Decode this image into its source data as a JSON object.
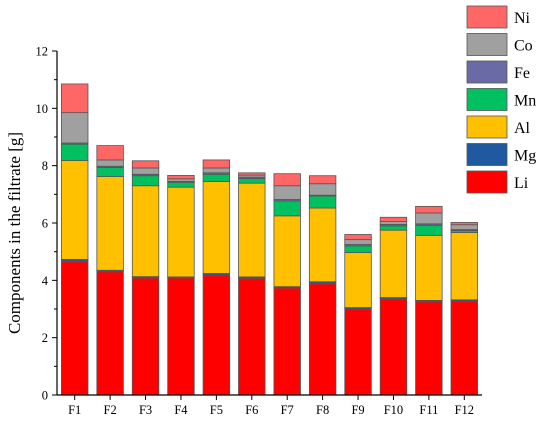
{
  "chart_data": {
    "type": "bar",
    "stacked": true,
    "categories": [
      "F1",
      "F2",
      "F3",
      "F4",
      "F5",
      "F6",
      "F7",
      "F8",
      "F9",
      "F10",
      "F11",
      "F12"
    ],
    "series": [
      {
        "name": "Li",
        "color": "#ff0000",
        "values": [
          4.65,
          4.3,
          4.08,
          4.08,
          4.18,
          4.07,
          3.73,
          3.88,
          3.0,
          3.35,
          3.25,
          3.27
        ]
      },
      {
        "name": "Mg",
        "color": "#1f5aa0",
        "values": [
          0.08,
          0.05,
          0.05,
          0.04,
          0.06,
          0.05,
          0.05,
          0.07,
          0.05,
          0.05,
          0.05,
          0.05
        ]
      },
      {
        "name": "Al",
        "color": "#ffc000",
        "values": [
          3.45,
          3.27,
          3.17,
          3.13,
          3.21,
          3.27,
          2.47,
          2.57,
          1.92,
          2.35,
          2.27,
          2.35
        ]
      },
      {
        "name": "Mn",
        "color": "#00c060",
        "values": [
          0.57,
          0.32,
          0.35,
          0.17,
          0.25,
          0.16,
          0.52,
          0.42,
          0.23,
          0.15,
          0.35,
          0.07
        ]
      },
      {
        "name": "Fe",
        "color": "#6a6aa6",
        "values": [
          0.04,
          0.04,
          0.05,
          0.03,
          0.05,
          0.05,
          0.05,
          0.03,
          0.05,
          0.05,
          0.05,
          0.03
        ]
      },
      {
        "name": "Co",
        "color": "#a0a0a0",
        "values": [
          1.06,
          0.22,
          0.22,
          0.09,
          0.17,
          0.07,
          0.48,
          0.4,
          0.17,
          0.1,
          0.38,
          0.17
        ]
      },
      {
        "name": "Ni",
        "color": "#ff6666",
        "values": [
          1.0,
          0.5,
          0.25,
          0.12,
          0.28,
          0.08,
          0.42,
          0.28,
          0.18,
          0.15,
          0.23,
          0.08
        ]
      }
    ],
    "title": "",
    "xlabel": "",
    "ylabel": "Components in the filtrate [g]",
    "ylim": [
      0,
      12
    ],
    "yticks": [
      0,
      2,
      4,
      6,
      8,
      10,
      12
    ],
    "grid": false,
    "legend_position": "top-right",
    "legend_order": [
      "Ni",
      "Co",
      "Fe",
      "Mn",
      "Al",
      "Mg",
      "Li"
    ]
  }
}
